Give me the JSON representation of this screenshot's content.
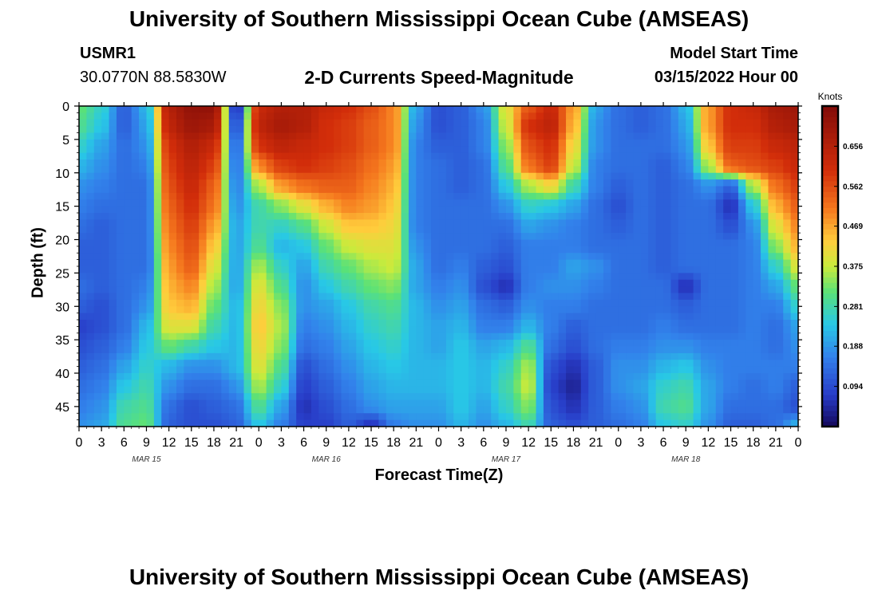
{
  "header": {
    "title": "University of Southern Mississippi Ocean Cube (AMSEAS)",
    "station_id": "USMR1",
    "station_coords": "30.0770N  88.5830W",
    "plot_name": "2-D Currents Speed-Magnitude",
    "model_start_label": "Model Start Time",
    "model_start_value": "03/15/2022 Hour 00"
  },
  "footer": {
    "title": "University of Southern Mississippi Ocean Cube (AMSEAS)"
  },
  "chart_data": {
    "type": "heatmap",
    "xlabel": "Forecast Time(Z)",
    "ylabel": "Depth (ft)",
    "x_ticks": [
      "0",
      "3",
      "6",
      "9",
      "12",
      "15",
      "18",
      "21",
      "0",
      "3",
      "6",
      "9",
      "12",
      "15",
      "18",
      "21",
      "0",
      "3",
      "6",
      "9",
      "12",
      "15",
      "18",
      "21",
      "0",
      "3",
      "6",
      "9",
      "12",
      "15",
      "18",
      "21",
      "0"
    ],
    "x_tick_hours": [
      0,
      3,
      6,
      9,
      12,
      15,
      18,
      21,
      24,
      27,
      30,
      33,
      36,
      39,
      42,
      45,
      48,
      51,
      54,
      57,
      60,
      63,
      66,
      69,
      72,
      75,
      78,
      81,
      84,
      87,
      90,
      93,
      96
    ],
    "xlim_hours": [
      0,
      96
    ],
    "date_labels": [
      {
        "text": "MAR 15",
        "hour": 9
      },
      {
        "text": "MAR 16",
        "hour": 33
      },
      {
        "text": "MAR 17",
        "hour": 57
      },
      {
        "text": "MAR 18",
        "hour": 81
      }
    ],
    "y_ticks": [
      "0",
      "5",
      "10",
      "15",
      "20",
      "25",
      "30",
      "35",
      "40",
      "45"
    ],
    "y_tick_values": [
      0,
      5,
      10,
      15,
      20,
      25,
      30,
      35,
      40,
      45
    ],
    "ylim": [
      0,
      48
    ],
    "y_inverted": true,
    "colorbar": {
      "unit": "Knots",
      "tick_labels": [
        "0.656",
        "0.562",
        "0.469",
        "0.375",
        "0.281",
        "0.188",
        "0.094"
      ],
      "tick_values": [
        0.656,
        0.562,
        0.469,
        0.375,
        0.281,
        0.188,
        0.094
      ],
      "range": [
        0.0,
        0.75
      ]
    },
    "depth_levels_ft": [
      0,
      3,
      6,
      9,
      12,
      15,
      18,
      21,
      24,
      27,
      30,
      33,
      36,
      39,
      42,
      45,
      48
    ],
    "time_hours": [
      0,
      3,
      6,
      9,
      12,
      15,
      18,
      21,
      24,
      27,
      30,
      33,
      36,
      39,
      42,
      45,
      48,
      51,
      54,
      57,
      60,
      63,
      66,
      69,
      72,
      75,
      78,
      81,
      84,
      87,
      90,
      93,
      96
    ],
    "speed_knots": [
      [
        0.32,
        0.26,
        0.12,
        0.22,
        0.66,
        0.72,
        0.72,
        0.04,
        0.62,
        0.66,
        0.66,
        0.62,
        0.6,
        0.56,
        0.5,
        0.2,
        0.1,
        0.12,
        0.18,
        0.4,
        0.55,
        0.62,
        0.48,
        0.2,
        0.14,
        0.12,
        0.14,
        0.22,
        0.48,
        0.6,
        0.62,
        0.68,
        0.7
      ],
      [
        0.3,
        0.24,
        0.12,
        0.2,
        0.64,
        0.7,
        0.68,
        0.08,
        0.64,
        0.68,
        0.66,
        0.6,
        0.58,
        0.54,
        0.5,
        0.18,
        0.1,
        0.12,
        0.16,
        0.38,
        0.6,
        0.64,
        0.46,
        0.18,
        0.14,
        0.12,
        0.14,
        0.2,
        0.48,
        0.6,
        0.6,
        0.66,
        0.68
      ],
      [
        0.26,
        0.2,
        0.14,
        0.18,
        0.6,
        0.66,
        0.62,
        0.12,
        0.6,
        0.64,
        0.62,
        0.6,
        0.58,
        0.54,
        0.5,
        0.16,
        0.12,
        0.12,
        0.16,
        0.34,
        0.56,
        0.6,
        0.42,
        0.18,
        0.14,
        0.14,
        0.14,
        0.18,
        0.44,
        0.58,
        0.58,
        0.62,
        0.64
      ],
      [
        0.22,
        0.18,
        0.14,
        0.16,
        0.58,
        0.64,
        0.58,
        0.14,
        0.5,
        0.58,
        0.6,
        0.58,
        0.56,
        0.52,
        0.48,
        0.16,
        0.14,
        0.12,
        0.14,
        0.3,
        0.52,
        0.58,
        0.38,
        0.16,
        0.14,
        0.14,
        0.12,
        0.16,
        0.36,
        0.54,
        0.56,
        0.58,
        0.62
      ],
      [
        0.18,
        0.16,
        0.14,
        0.14,
        0.56,
        0.62,
        0.54,
        0.16,
        0.36,
        0.48,
        0.52,
        0.54,
        0.54,
        0.5,
        0.46,
        0.16,
        0.14,
        0.12,
        0.14,
        0.24,
        0.36,
        0.42,
        0.28,
        0.16,
        0.12,
        0.14,
        0.12,
        0.14,
        0.18,
        0.12,
        0.36,
        0.52,
        0.58
      ],
      [
        0.16,
        0.14,
        0.14,
        0.14,
        0.54,
        0.6,
        0.52,
        0.18,
        0.28,
        0.34,
        0.4,
        0.46,
        0.5,
        0.48,
        0.44,
        0.16,
        0.14,
        0.14,
        0.14,
        0.18,
        0.26,
        0.24,
        0.2,
        0.14,
        0.1,
        0.14,
        0.12,
        0.14,
        0.14,
        0.06,
        0.24,
        0.46,
        0.54
      ],
      [
        0.14,
        0.12,
        0.14,
        0.14,
        0.52,
        0.58,
        0.48,
        0.2,
        0.28,
        0.26,
        0.3,
        0.38,
        0.44,
        0.44,
        0.42,
        0.16,
        0.14,
        0.14,
        0.14,
        0.14,
        0.2,
        0.18,
        0.16,
        0.14,
        0.12,
        0.14,
        0.12,
        0.14,
        0.14,
        0.1,
        0.18,
        0.4,
        0.5
      ],
      [
        0.12,
        0.12,
        0.14,
        0.14,
        0.5,
        0.56,
        0.44,
        0.2,
        0.3,
        0.22,
        0.24,
        0.32,
        0.38,
        0.4,
        0.4,
        0.18,
        0.14,
        0.14,
        0.14,
        0.12,
        0.16,
        0.16,
        0.16,
        0.14,
        0.14,
        0.14,
        0.12,
        0.14,
        0.14,
        0.14,
        0.16,
        0.34,
        0.46
      ],
      [
        0.12,
        0.12,
        0.14,
        0.14,
        0.48,
        0.54,
        0.4,
        0.2,
        0.36,
        0.26,
        0.2,
        0.28,
        0.32,
        0.36,
        0.38,
        0.2,
        0.14,
        0.16,
        0.12,
        0.1,
        0.16,
        0.16,
        0.2,
        0.18,
        0.14,
        0.14,
        0.12,
        0.14,
        0.14,
        0.14,
        0.16,
        0.26,
        0.4
      ],
      [
        0.14,
        0.12,
        0.14,
        0.16,
        0.46,
        0.5,
        0.36,
        0.2,
        0.4,
        0.3,
        0.18,
        0.24,
        0.28,
        0.32,
        0.34,
        0.2,
        0.16,
        0.18,
        0.1,
        0.06,
        0.16,
        0.18,
        0.18,
        0.16,
        0.14,
        0.14,
        0.14,
        0.06,
        0.14,
        0.14,
        0.16,
        0.2,
        0.32
      ],
      [
        0.12,
        0.1,
        0.14,
        0.18,
        0.44,
        0.46,
        0.32,
        0.22,
        0.42,
        0.34,
        0.18,
        0.2,
        0.24,
        0.28,
        0.3,
        0.22,
        0.18,
        0.2,
        0.14,
        0.12,
        0.18,
        0.16,
        0.16,
        0.14,
        0.14,
        0.14,
        0.14,
        0.12,
        0.14,
        0.14,
        0.16,
        0.16,
        0.26
      ],
      [
        0.08,
        0.1,
        0.14,
        0.22,
        0.4,
        0.4,
        0.28,
        0.22,
        0.44,
        0.36,
        0.16,
        0.18,
        0.22,
        0.26,
        0.28,
        0.22,
        0.2,
        0.22,
        0.16,
        0.16,
        0.22,
        0.16,
        0.12,
        0.14,
        0.14,
        0.14,
        0.16,
        0.14,
        0.14,
        0.14,
        0.16,
        0.14,
        0.2
      ],
      [
        0.1,
        0.12,
        0.16,
        0.24,
        0.32,
        0.28,
        0.24,
        0.22,
        0.42,
        0.34,
        0.14,
        0.16,
        0.2,
        0.24,
        0.26,
        0.22,
        0.2,
        0.24,
        0.2,
        0.22,
        0.3,
        0.14,
        0.1,
        0.14,
        0.16,
        0.16,
        0.18,
        0.18,
        0.16,
        0.16,
        0.16,
        0.14,
        0.18
      ],
      [
        0.12,
        0.14,
        0.2,
        0.26,
        0.22,
        0.18,
        0.18,
        0.22,
        0.4,
        0.3,
        0.1,
        0.14,
        0.18,
        0.22,
        0.24,
        0.22,
        0.22,
        0.24,
        0.22,
        0.26,
        0.36,
        0.1,
        0.06,
        0.12,
        0.18,
        0.18,
        0.22,
        0.24,
        0.18,
        0.16,
        0.16,
        0.16,
        0.16
      ],
      [
        0.14,
        0.16,
        0.24,
        0.28,
        0.18,
        0.14,
        0.14,
        0.18,
        0.36,
        0.26,
        0.08,
        0.12,
        0.16,
        0.2,
        0.22,
        0.22,
        0.22,
        0.24,
        0.22,
        0.28,
        0.38,
        0.08,
        0.04,
        0.12,
        0.18,
        0.2,
        0.26,
        0.28,
        0.2,
        0.16,
        0.14,
        0.16,
        0.12
      ],
      [
        0.16,
        0.18,
        0.28,
        0.3,
        0.14,
        0.1,
        0.12,
        0.14,
        0.3,
        0.2,
        0.06,
        0.1,
        0.14,
        0.18,
        0.2,
        0.2,
        0.2,
        0.24,
        0.2,
        0.26,
        0.34,
        0.1,
        0.06,
        0.12,
        0.16,
        0.18,
        0.28,
        0.3,
        0.2,
        0.14,
        0.14,
        0.14,
        0.1
      ],
      [
        0.18,
        0.2,
        0.3,
        0.32,
        0.12,
        0.1,
        0.1,
        0.12,
        0.24,
        0.16,
        0.08,
        0.08,
        0.12,
        0.06,
        0.16,
        0.18,
        0.18,
        0.22,
        0.18,
        0.22,
        0.28,
        0.12,
        0.1,
        0.12,
        0.14,
        0.16,
        0.24,
        0.26,
        0.18,
        0.12,
        0.12,
        0.14,
        0.22
      ]
    ]
  }
}
